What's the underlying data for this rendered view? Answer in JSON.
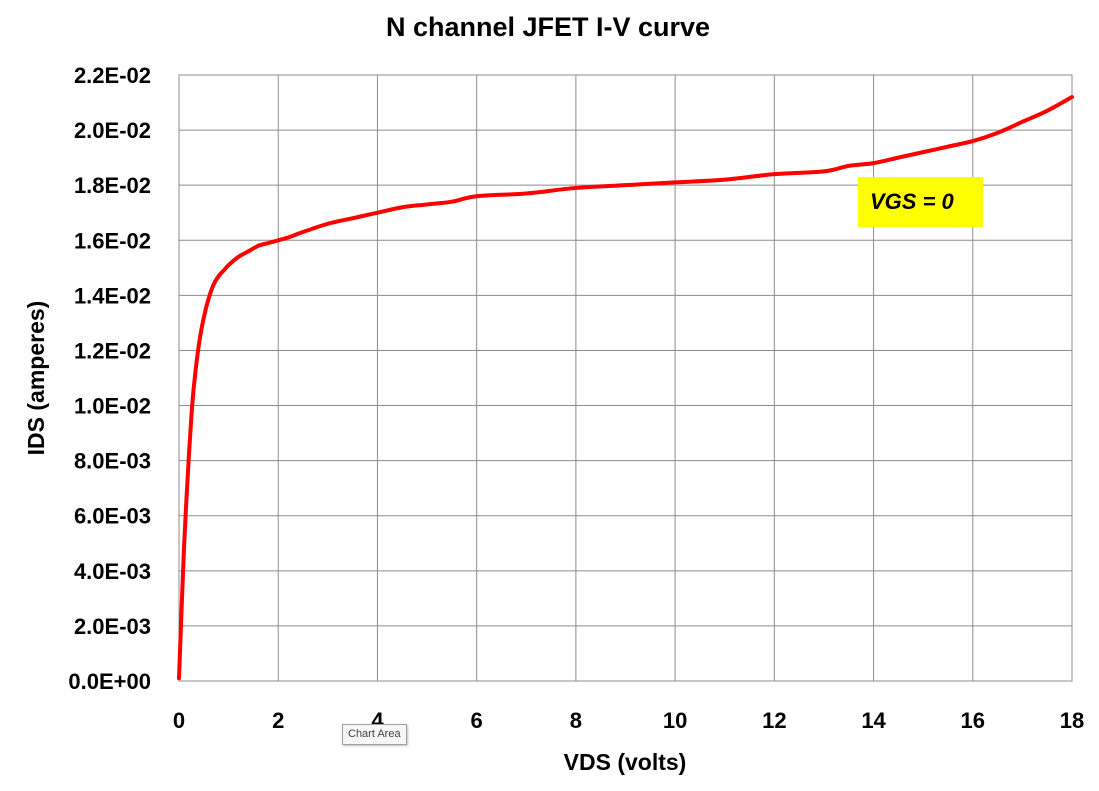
{
  "chart_data": {
    "type": "line",
    "title": "N channel JFET  I-V curve",
    "xlabel": "VDS  (volts)",
    "ylabel": "IDS  (amperes)",
    "xlim": [
      0,
      18
    ],
    "ylim": [
      0,
      0.022
    ],
    "x_ticks": [
      0,
      2,
      4,
      6,
      8,
      10,
      12,
      14,
      16,
      18
    ],
    "x_tick_labels": [
      "0",
      "2",
      "4",
      "6",
      "8",
      "10",
      "12",
      "14",
      "16",
      "18"
    ],
    "y_ticks": [
      0,
      0.002,
      0.004,
      0.006,
      0.008,
      0.01,
      0.012,
      0.014,
      0.016,
      0.018,
      0.02,
      0.022
    ],
    "y_tick_labels": [
      "0.0E+00",
      "2.0E-03",
      "4.0E-03",
      "6.0E-03",
      "8.0E-03",
      "1.0E-02",
      "1.2E-02",
      "1.4E-02",
      "1.6E-02",
      "1.8E-02",
      "2.0E-02",
      "2.2E-02"
    ],
    "grid": true,
    "legend": "none",
    "series": [
      {
        "color": "#ff0000",
        "x": [
          0,
          0.05,
          0.1,
          0.15,
          0.2,
          0.25,
          0.3,
          0.4,
          0.5,
          0.6,
          0.7,
          0.8,
          0.9,
          1.0,
          1.2,
          1.4,
          1.6,
          1.8,
          2.0,
          2.2,
          2.5,
          3.0,
          3.5,
          4.0,
          4.5,
          5.0,
          5.5,
          6.0,
          7.0,
          8.0,
          9.0,
          10.0,
          11.0,
          12.0,
          13.0,
          13.5,
          14.0,
          14.5,
          15.0,
          15.5,
          16.0,
          16.5,
          17.0,
          17.5,
          18.0
        ],
        "y": [
          0.0001,
          0.0025,
          0.0048,
          0.0066,
          0.0082,
          0.0096,
          0.0107,
          0.0122,
          0.0132,
          0.0139,
          0.0144,
          0.0147,
          0.0149,
          0.0151,
          0.0154,
          0.0156,
          0.0158,
          0.0159,
          0.016,
          0.0161,
          0.0163,
          0.0166,
          0.0168,
          0.017,
          0.0172,
          0.0173,
          0.0174,
          0.0176,
          0.0177,
          0.0179,
          0.018,
          0.0181,
          0.0182,
          0.0184,
          0.0185,
          0.0187,
          0.0188,
          0.019,
          0.0192,
          0.0194,
          0.0196,
          0.0199,
          0.0203,
          0.0207,
          0.0212
        ]
      }
    ],
    "annotation": {
      "text": "VGS = 0",
      "background": "#ffff00"
    }
  },
  "tooltip": {
    "label": "Chart Area"
  }
}
